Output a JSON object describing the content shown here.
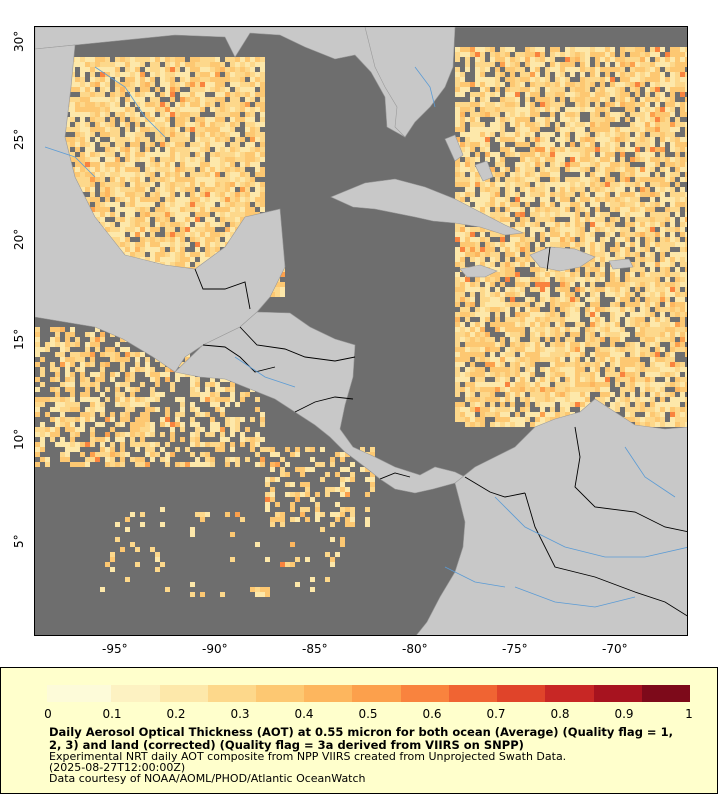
{
  "map": {
    "lon_ticks": [
      "-95°",
      "-90°",
      "-85°",
      "-80°",
      "-75°",
      "-70°"
    ],
    "lat_ticks": [
      "30°",
      "25°",
      "20°",
      "15°",
      "10°",
      "5°"
    ],
    "colors": {
      "nodata": "#6e6e6e",
      "land": "#c8c8c8",
      "border": "#000000",
      "river": "#5b9bd5"
    }
  },
  "legend": {
    "ticks": [
      "0",
      "0.1",
      "0.2",
      "0.3",
      "0.4",
      "0.5",
      "0.6",
      "0.7",
      "0.8",
      "0.9",
      "1"
    ],
    "colors": [
      "#fdfbd9",
      "#fdf2c2",
      "#fde8aa",
      "#fdd88b",
      "#fdc872",
      "#fdb65e",
      "#fca04c",
      "#f9833e",
      "#f06433",
      "#e0442a",
      "#c82725",
      "#a7131f",
      "#7d0a1a"
    ],
    "title_line1": "Daily Aerosol Optical Thickness (AOT) at 0.55 micron for both ocean (Average) (Quality flag = 1,",
    "title_line2": "2, 3) and land (corrected) (Quality flag = 3a derived from VIIRS on SNPP)",
    "note1": "Experimental NRT daily AOT composite from NPP VIIRS created from Unprojected Swath Data.",
    "note2": "(2025-08-27T12:00:00Z)",
    "note3": "Data courtesy of NOAA/AOML/PHOD/Atlantic OceanWatch"
  }
}
